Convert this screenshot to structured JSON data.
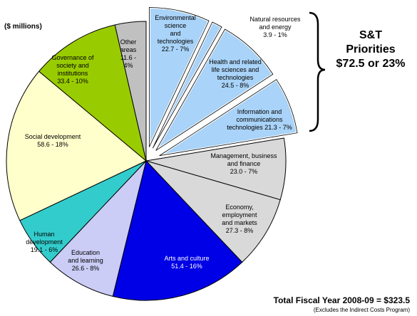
{
  "chart_data": {
    "type": "pie",
    "unit_label": "($ millions)",
    "slices": [
      {
        "lines": [
          "Environmental",
          "science",
          "and",
          "technologies",
          "22.7 - 7%"
        ],
        "value": 22.7,
        "pct": 7,
        "color": "#a9d3f8",
        "exploded": true
      },
      {
        "lines": [
          "Natural resources",
          "and energy",
          "3.9 - 1%"
        ],
        "value": 3.9,
        "pct": 1,
        "color": "#a9d3f8",
        "exploded": true
      },
      {
        "lines": [
          "Health and related",
          "life sciences and",
          "technologies",
          "24.5 - 8%"
        ],
        "value": 24.5,
        "pct": 8,
        "color": "#a9d3f8",
        "exploded": true
      },
      {
        "lines": [
          "Information and",
          "communications",
          "technologies 21.3 - 7%"
        ],
        "value": 21.3,
        "pct": 7,
        "color": "#a9d3f8",
        "exploded": true
      },
      {
        "lines": [
          "Management, business",
          "and finance",
          "23.0 - 7%"
        ],
        "value": 23.0,
        "pct": 7,
        "color": "#d9d9d9",
        "exploded": false
      },
      {
        "lines": [
          "Economy,",
          "employment",
          "and markets",
          "27.3 - 8%"
        ],
        "value": 27.3,
        "pct": 8,
        "color": "#d9d9d9",
        "exploded": false
      },
      {
        "lines": [
          "Arts and culture",
          "51.4 - 16%"
        ],
        "value": 51.4,
        "pct": 16,
        "color": "#0000e6",
        "exploded": false
      },
      {
        "lines": [
          "Education",
          "and learning",
          "26.6 - 8%"
        ],
        "value": 26.6,
        "pct": 8,
        "color": "#cccdf6",
        "exploded": false
      },
      {
        "lines": [
          "Human",
          "development",
          "19.1 - 6%"
        ],
        "value": 19.1,
        "pct": 6,
        "color": "#33cccc",
        "exploded": false
      },
      {
        "lines": [
          "Social development",
          "58.6 - 18%"
        ],
        "value": 58.6,
        "pct": 18,
        "color": "#ffffcc",
        "exploded": false
      },
      {
        "lines": [
          "Governance of",
          "society and",
          "institutions",
          "33.4 - 10%"
        ],
        "value": 33.4,
        "pct": 10,
        "color": "#99cc00",
        "exploded": false
      },
      {
        "lines": [
          "Other",
          "areas",
          "11.6 -",
          "4%"
        ],
        "value": 11.6,
        "pct": 4,
        "color": "#c0c0c0",
        "exploded": false
      }
    ],
    "bracket_lines": [
      "S&T",
      "Priorities",
      "$72.5 or 23%"
    ],
    "total_label": "Total Fiscal Year 2008-09 = $323.5",
    "note": "(Excludes the Indirect Costs Program)"
  }
}
